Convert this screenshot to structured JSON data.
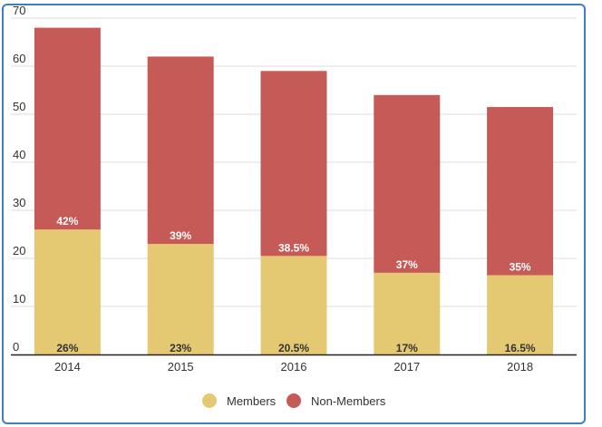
{
  "chart_data": {
    "type": "bar",
    "stacked": true,
    "categories": [
      "2014",
      "2015",
      "2016",
      "2017",
      "2018"
    ],
    "series": [
      {
        "name": "Members",
        "color": "#e5c972",
        "values": [
          26,
          23,
          20.5,
          17,
          16.5
        ],
        "labels": [
          "26%",
          "23%",
          "20.5%",
          "17%",
          "16.5%"
        ],
        "label_color": "#333333"
      },
      {
        "name": "Non-Members",
        "color": "#c55a57",
        "values": [
          42,
          39,
          38.5,
          37,
          35
        ],
        "labels": [
          "42%",
          "39%",
          "38.5%",
          "37%",
          "35%"
        ],
        "label_color": "#ffffff"
      }
    ],
    "y_ticks": [
      0,
      10,
      20,
      30,
      40,
      50,
      60,
      70
    ],
    "ylim": [
      0,
      70
    ],
    "grid": true,
    "legend_position": "bottom-center"
  }
}
